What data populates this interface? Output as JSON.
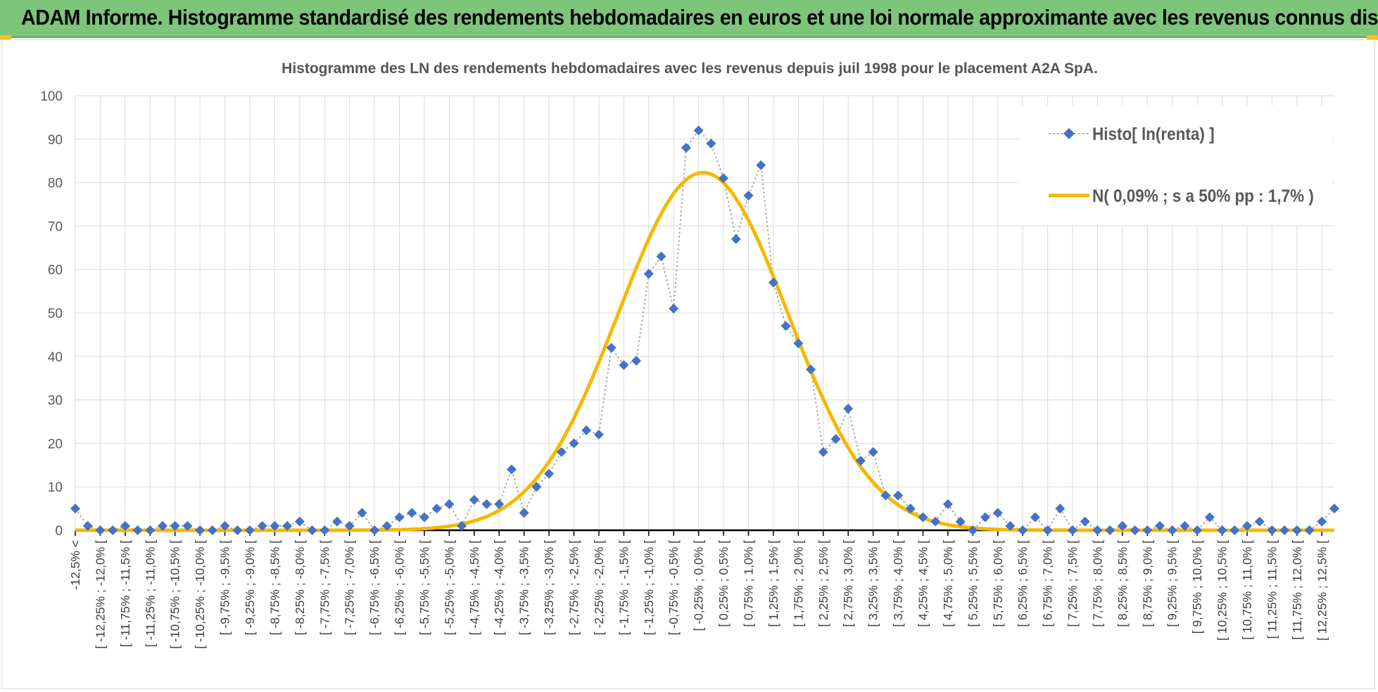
{
  "page": {
    "banner_title": "ADAM Informe. Histogramme standardisé des rendements hebdomadaires en euros et une loi normale approximante avec les revenus connus distribués"
  },
  "colors": {
    "banner": "#7dc57b",
    "series_histo": "#4472c4",
    "series_normal": "#f5b800",
    "grid": "#d9d9d9"
  },
  "chart_data": {
    "type": "line",
    "title": "Histogramme des LN des rendements hebdomadaires avec les revenus depuis juil 1998 pour le placement A2A SpA.",
    "xlabel": "",
    "ylabel": "",
    "ylim": [
      0,
      100
    ],
    "yticks": [
      0,
      10,
      20,
      30,
      40,
      50,
      60,
      70,
      80,
      90,
      100
    ],
    "grid": true,
    "legend_position": "top-right",
    "categories": [
      "-12,5% <",
      "[ -12,25% ; -12,0% [",
      "[ -11,75% ; -11,5% [",
      "[ -11,25% ; -11,0% [",
      "[ -10,75% ; -10,5% [",
      "[ -10,25% ; -10,0% [",
      "[ -9,75% ; -9,5% [",
      "[ -9,25% ; -9,0% [",
      "[ -8,75% ; -8,5% [",
      "[ -8,25% ; -8,0% [",
      "[ -7,75% ; -7,5% [",
      "[ -7,25% ; -7,0% [",
      "[ -6,75% ; -6,5% [",
      "[ -6,25% ; -6,0% [",
      "[ -5,75% ; -5,5% [",
      "[ -5,25% ; -5,0% [",
      "[ -4,75% ; -4,5% [",
      "[ -4,25% ; -4,0% [",
      "[ -3,75% ; -3,5% [",
      "[ -3,25% ; -3,0% [",
      "[ -2,75% ; -2,5% [",
      "[ -2,25% ; -2,0% [",
      "[ -1,75% ; -1,5% [",
      "[ -1,25% ; -1,0% [",
      "[ -0,75% ; -0,5% [",
      "[ -0,25% ; 0,0% [",
      "[ 0,25% ; 0,5% [",
      "[ 0,75% ; 1,0% [",
      "[ 1,25% ; 1,5% [",
      "[ 1,75% ; 2,0% [",
      "[ 2,25% ; 2,5% [",
      "[ 2,75% ; 3,0% [",
      "[ 3,25% ; 3,5% [",
      "[ 3,75% ; 4,0% [",
      "[ 4,25% ; 4,5% [",
      "[ 4,75% ; 5,0% [",
      "[ 5,25% ; 5,5% [",
      "[ 5,75% ; 6,0% [",
      "[ 6,25% ; 6,5% [",
      "[ 6,75% ; 7,0% [",
      "[ 7,25% ; 7,5% [",
      "[ 7,75% ; 8,0% [",
      "[ 8,25% ; 8,5% [",
      "[ 8,75% ; 9,0% [",
      "[ 9,25% ; 9,5% [",
      "[ 9,75% ; 10,0% [",
      "[ 10,25% ; 10,5% [",
      "[ 10,75% ; 11,0% [",
      "[ 11,25% ; 11,5% [",
      "[ 11,75% ; 12,0% [",
      "[ 12,25% ; 12,5% ["
    ],
    "x": [
      -12.5,
      -12.25,
      -12.0,
      -11.75,
      -11.5,
      -11.25,
      -11.0,
      -10.75,
      -10.5,
      -10.25,
      -10.0,
      -9.75,
      -9.5,
      -9.25,
      -9.0,
      -8.75,
      -8.5,
      -8.25,
      -8.0,
      -7.75,
      -7.5,
      -7.25,
      -7.0,
      -6.75,
      -6.5,
      -6.25,
      -6.0,
      -5.75,
      -5.5,
      -5.25,
      -5.0,
      -4.75,
      -4.5,
      -4.25,
      -4.0,
      -3.75,
      -3.5,
      -3.25,
      -3.0,
      -2.75,
      -2.5,
      -2.25,
      -2.0,
      -1.75,
      -1.5,
      -1.25,
      -1.0,
      -0.75,
      -0.5,
      -0.25,
      0.0,
      0.25,
      0.5,
      0.75,
      1.0,
      1.25,
      1.5,
      1.75,
      2.0,
      2.25,
      2.5,
      2.75,
      3.0,
      3.25,
      3.5,
      3.75,
      4.0,
      4.25,
      4.5,
      4.75,
      5.0,
      5.25,
      5.5,
      5.75,
      6.0,
      6.25,
      6.5,
      6.75,
      7.0,
      7.25,
      7.5,
      7.75,
      8.0,
      8.25,
      8.5,
      8.75,
      9.0,
      9.25,
      9.5,
      9.75,
      10.0,
      10.25,
      10.5,
      10.75,
      11.0,
      11.25,
      11.5,
      11.75,
      12.0,
      12.25,
      12.5,
      12.75
    ],
    "series": [
      {
        "name": "Histo[ ln(renta) ]",
        "style": "dotted line with diamond markers",
        "values": [
          5,
          1,
          0,
          0,
          1,
          0,
          0,
          1,
          1,
          1,
          0,
          0,
          1,
          0,
          0,
          1,
          1,
          1,
          2,
          0,
          0,
          2,
          1,
          4,
          0,
          1,
          3,
          4,
          3,
          5,
          6,
          1,
          7,
          6,
          6,
          14,
          4,
          10,
          13,
          18,
          20,
          23,
          22,
          42,
          38,
          39,
          59,
          63,
          51,
          88,
          92,
          89,
          81,
          67,
          77,
          84,
          57,
          47,
          43,
          37,
          18,
          21,
          28,
          16,
          18,
          8,
          8,
          5,
          3,
          2,
          6,
          2,
          0,
          3,
          4,
          1,
          0,
          3,
          0,
          5,
          0,
          2,
          0,
          0,
          1,
          0,
          0,
          1,
          0,
          1,
          0,
          3,
          0,
          0,
          1,
          2,
          0,
          0,
          0,
          0,
          2,
          5
        ]
      },
      {
        "name": "N( 0,09% ; s a 50% pp : 1,7% )",
        "style": "thick solid line",
        "mean": 0.09,
        "sd": 1.7,
        "peak": 82.3,
        "values": [
          0.0,
          0.0,
          0.0,
          0.0,
          0.0,
          0.0,
          0.0,
          0.0,
          0.0,
          0.0,
          0.0,
          0.0,
          0.0,
          0.0,
          0.0,
          0.0,
          0.0,
          0.0,
          0.0,
          0.0,
          0.0,
          0.0,
          0.0,
          0.0,
          0.0,
          0.0,
          0.0,
          0.0,
          0.1,
          0.3,
          0.7,
          1.3,
          2.2,
          3.5,
          5.3,
          7.7,
          11.0,
          15.1,
          19.9,
          25.6,
          31.9,
          38.7,
          45.8,
          52.9,
          59.9,
          66.3,
          72.0,
          76.7,
          80.1,
          82.1,
          82.3,
          80.8,
          77.8,
          73.3,
          67.7,
          61.4,
          54.4,
          47.3,
          40.3,
          33.6,
          27.3,
          21.5,
          16.4,
          12.1,
          8.6,
          5.9,
          3.9,
          2.5,
          1.5,
          0.8,
          0.5,
          0.2,
          0.1,
          0.1,
          0.0,
          0.0,
          0.0,
          0.0,
          0.0,
          0.0,
          0.0,
          0.0,
          0.0,
          0.0,
          0.0,
          0.0,
          0.0,
          0.0,
          0.0,
          0.0,
          0.0,
          0.0,
          0.0,
          0.0,
          0.0,
          0.0,
          0.0,
          0.0,
          0.0,
          0.0,
          0.0,
          0.0
        ]
      }
    ]
  }
}
